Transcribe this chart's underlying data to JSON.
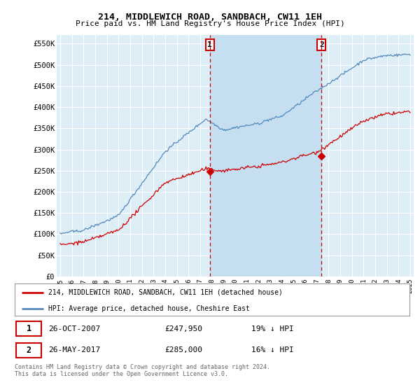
{
  "title": "214, MIDDLEWICH ROAD, SANDBACH, CW11 1EH",
  "subtitle": "Price paid vs. HM Land Registry's House Price Index (HPI)",
  "ylabel_ticks": [
    "£0",
    "£50K",
    "£100K",
    "£150K",
    "£200K",
    "£250K",
    "£300K",
    "£350K",
    "£400K",
    "£450K",
    "£500K",
    "£550K"
  ],
  "ytick_values": [
    0,
    50000,
    100000,
    150000,
    200000,
    250000,
    300000,
    350000,
    400000,
    450000,
    500000,
    550000
  ],
  "ylim": [
    0,
    570000
  ],
  "xlim_start": 1994.7,
  "xlim_end": 2025.3,
  "background_color": "#ffffff",
  "plot_bg_color": "#ddeef7",
  "shade_color": "#c5dff0",
  "grid_color": "#ffffff",
  "red_line_color": "#cc0000",
  "blue_line_color": "#5588bb",
  "marker1_date": 2007.82,
  "marker1_price": 247950,
  "marker2_date": 2017.4,
  "marker2_price": 285000,
  "legend_label1": "214, MIDDLEWICH ROAD, SANDBACH, CW11 1EH (detached house)",
  "legend_label2": "HPI: Average price, detached house, Cheshire East",
  "annotation1_label": "1",
  "annotation2_label": "2",
  "footer": "Contains HM Land Registry data © Crown copyright and database right 2024.\nThis data is licensed under the Open Government Licence v3.0.",
  "xtick_years": [
    1995,
    1996,
    1997,
    1998,
    1999,
    2000,
    2001,
    2002,
    2003,
    2004,
    2005,
    2006,
    2007,
    2008,
    2009,
    2010,
    2011,
    2012,
    2013,
    2014,
    2015,
    2016,
    2017,
    2018,
    2019,
    2020,
    2021,
    2022,
    2023,
    2024,
    2025
  ]
}
